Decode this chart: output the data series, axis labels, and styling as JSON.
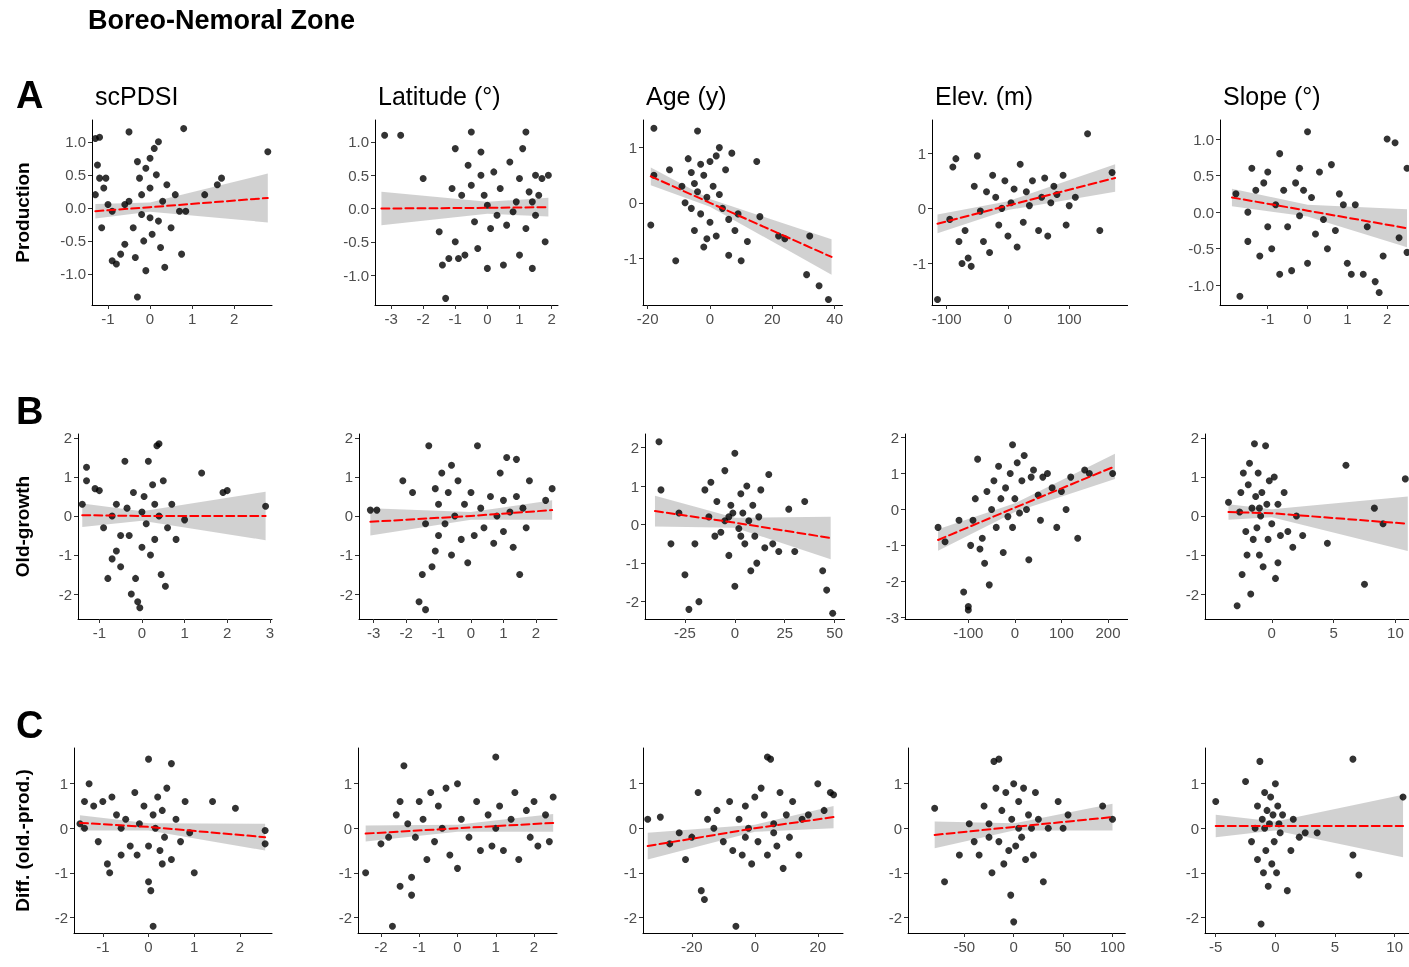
{
  "chart_data": [
    {
      "type": "scatter",
      "title": "scPDSI",
      "ylabel": "Production",
      "annotations": [
        "Boreo-Nemoral Zone",
        "A"
      ],
      "xlim": [
        -1.38,
        2.9
      ],
      "xticks": [
        -1,
        0,
        1,
        2
      ],
      "ylim": [
        -1.47,
        1.33
      ],
      "yticks": [
        {
          "value": -1,
          "label": "-1.0"
        },
        -0.5,
        {
          "value": 0,
          "label": "0.0"
        },
        0.5,
        {
          "value": 1,
          "label": "1.0"
        }
      ],
      "series": [
        {
          "type": "scatter",
          "color": "#000000",
          "marker": "circle",
          "x": [
            -1.3,
            -1.2,
            -1.25,
            -1.2,
            -1.3,
            -1.1,
            -1.05,
            -1.0,
            -1.15,
            -0.9,
            -0.8,
            -0.7,
            -0.6,
            -0.5,
            -0.5,
            -0.4,
            -0.35,
            -0.3,
            -0.3,
            -0.25,
            -0.2,
            -0.2,
            -0.15,
            -0.1,
            -0.1,
            0,
            0,
            0,
            0.05,
            0.1,
            0.15,
            0.2,
            0.2,
            0.25,
            0.3,
            0.35,
            0.4,
            0.5,
            0.6,
            0.7,
            0.75,
            0.8,
            0.85,
            1.3,
            1.6,
            1.7,
            2.8,
            -0.6,
            -0.9
          ],
          "values": [
            1.05,
            1.07,
            0.65,
            0.45,
            0.2,
            0.3,
            0.45,
            0.05,
            -0.3,
            -0.8,
            -0.85,
            -0.7,
            -0.55,
            1.15,
            0.1,
            -0.3,
            -0.75,
            -1.35,
            0.7,
            0.45,
            0.2,
            -0.1,
            -0.5,
            -0.95,
            0.6,
            0.75,
            0.3,
            -0.15,
            -0.4,
            0.9,
            0.5,
            1.0,
            -0.2,
            -0.6,
            0.1,
            -0.9,
            0.35,
            -0.3,
            0.2,
            -0.05,
            -0.7,
            1.2,
            -0.05,
            0.2,
            0.35,
            0.45,
            0.85,
            0.05,
            -0.05
          ]
        },
        {
          "type": "line",
          "color": "#ff0000",
          "marker": "none",
          "line_style": "dashed",
          "x": [
            -1.3,
            0,
            2.8
          ],
          "values": [
            -0.05,
            0.01,
            0.15
          ],
          "lower": [
            -0.16,
            -0.06,
            -0.22
          ],
          "upper": [
            0.06,
            0.08,
            0.52
          ]
        }
      ]
    },
    {
      "type": "scatter",
      "title": "Latitude (°)",
      "xlim": [
        -3.5,
        2.2
      ],
      "xticks": [
        -3,
        -2,
        -1,
        0,
        1,
        2
      ],
      "ylim": [
        -1.45,
        1.33
      ],
      "yticks": [
        {
          "value": -1,
          "label": "-1.0"
        },
        -0.5,
        {
          "value": 0,
          "label": "0.0"
        },
        0.5,
        {
          "value": 1,
          "label": "1.0"
        }
      ],
      "series": [
        {
          "type": "scatter",
          "color": "#000000",
          "marker": "circle",
          "x": [
            -3.2,
            -2.7,
            -2.0,
            -1.5,
            -1.3,
            -1.2,
            -1.1,
            -1.0,
            -1.0,
            -0.9,
            -0.8,
            -0.7,
            -0.6,
            -0.5,
            -0.5,
            -0.4,
            -0.3,
            -0.2,
            -0.1,
            0,
            0,
            0.1,
            0.2,
            0.3,
            0.4,
            0.5,
            0.6,
            0.7,
            0.8,
            0.9,
            1.0,
            1.0,
            1.1,
            1.2,
            1.2,
            1.3,
            1.4,
            1.5,
            1.5,
            1.6,
            1.7,
            1.8,
            1.9,
            1.4,
            -1.4,
            -0.2
          ],
          "values": [
            1.1,
            1.1,
            0.45,
            -0.35,
            -1.35,
            -0.75,
            0.3,
            -0.5,
            0.9,
            -0.75,
            0.2,
            -0.7,
            0.65,
            1.15,
            0.35,
            -0.2,
            -0.6,
            0.85,
            0.2,
            -0.9,
            0.05,
            -0.3,
            0.55,
            -0.1,
            0.3,
            -0.85,
            -0.25,
            0.7,
            -0.05,
            0.1,
            -0.7,
            0.45,
            0.9,
            -0.3,
            1.15,
            0.25,
            -0.9,
            0.5,
            -0.1,
            0.2,
            0.45,
            -0.5,
            0.5,
            0.1,
            -0.85,
            0.5
          ]
        },
        {
          "type": "line",
          "color": "#ff0000",
          "marker": "none",
          "line_style": "dashed",
          "x": [
            -3.3,
            0,
            1.9
          ],
          "values": [
            0.0,
            0.01,
            0.02
          ],
          "lower": [
            -0.25,
            -0.08,
            -0.12
          ],
          "upper": [
            0.25,
            0.1,
            0.16
          ]
        }
      ]
    },
    {
      "type": "scatter",
      "title": "Age (y)",
      "xlim": [
        -21.5,
        42.5
      ],
      "xticks": [
        -20,
        0,
        20,
        40
      ],
      "ylim": [
        -1.85,
        1.5
      ],
      "yticks": [
        -1,
        0,
        1
      ],
      "series": [
        {
          "type": "scatter",
          "color": "#000000",
          "marker": "circle",
          "x": [
            -18,
            -18,
            -19,
            -13,
            -11,
            -9,
            -8,
            -7,
            -6,
            -6,
            -5,
            -5,
            -4,
            -4,
            -3,
            -3,
            -2,
            -2,
            -1,
            0,
            0,
            1,
            2,
            2,
            3,
            4,
            5,
            6,
            6,
            7,
            8,
            9,
            10,
            12,
            15,
            16,
            22,
            24,
            32,
            31,
            35,
            38,
            -1,
            3
          ],
          "values": [
            1.35,
            0.5,
            -0.4,
            0.6,
            -1.05,
            0.3,
            0.0,
            0.8,
            0.55,
            -0.1,
            0.35,
            -0.5,
            1.3,
            0.2,
            0.7,
            -0.2,
            0.5,
            -0.8,
            0.1,
            0.75,
            -0.35,
            0.3,
            -0.6,
            0.85,
            1.0,
            -0.1,
            0.6,
            -0.95,
            -0.3,
            0.9,
            -0.5,
            -0.2,
            -1.05,
            -0.7,
            0.75,
            -0.25,
            -0.6,
            -0.65,
            -0.6,
            -1.3,
            -1.5,
            -1.75,
            -0.65,
            0.15
          ]
        },
        {
          "type": "line",
          "color": "#ff0000",
          "marker": "none",
          "line_style": "dashed",
          "x": [
            -19,
            0,
            39
          ],
          "values": [
            0.48,
            0.0,
            -0.98
          ],
          "lower": [
            0.32,
            -0.07,
            -1.3
          ],
          "upper": [
            0.64,
            0.07,
            -0.66
          ]
        }
      ]
    },
    {
      "type": "scatter",
      "title": "Elev. (m)",
      "xlim": [
        -124,
        196
      ],
      "xticks": [
        -100,
        0,
        100
      ],
      "ylim": [
        -1.75,
        1.6
      ],
      "yticks": [
        -1,
        0,
        1
      ],
      "series": [
        {
          "type": "scatter",
          "color": "#000000",
          "marker": "circle",
          "x": [
            -115,
            -95,
            -90,
            -85,
            -80,
            -70,
            -65,
            -60,
            -55,
            -50,
            -45,
            -40,
            -35,
            -30,
            -25,
            -20,
            -15,
            -10,
            -5,
            0,
            5,
            10,
            15,
            20,
            25,
            30,
            35,
            40,
            50,
            55,
            60,
            65,
            70,
            80,
            90,
            95,
            100,
            110,
            130,
            150,
            170,
            -75,
            75
          ],
          "values": [
            -1.65,
            -0.2,
            0.75,
            0.9,
            -0.6,
            -0.4,
            -0.9,
            -1.05,
            0.4,
            0.95,
            -0.05,
            -0.6,
            0.3,
            -0.8,
            0.6,
            0.2,
            -0.3,
            0.0,
            0.5,
            -0.5,
            0.1,
            0.35,
            -0.7,
            0.8,
            -0.25,
            0.3,
            0.05,
            0.5,
            -0.4,
            0.2,
            0.55,
            -0.5,
            0.1,
            0.25,
            0.6,
            -0.3,
            0.05,
            0.2,
            1.35,
            -0.4,
            0.65,
            -1.0,
            0.4
          ]
        },
        {
          "type": "line",
          "color": "#ff0000",
          "marker": "none",
          "line_style": "dashed",
          "x": [
            -115,
            0,
            175
          ],
          "values": [
            -0.28,
            0.05,
            0.55
          ],
          "lower": [
            -0.45,
            -0.03,
            0.3
          ],
          "upper": [
            -0.11,
            0.13,
            0.8
          ]
        }
      ]
    },
    {
      "type": "scatter",
      "title": "Slope (°)",
      "xlim": [
        -2.2,
        2.55
      ],
      "xticks": [
        -1,
        0,
        1,
        2
      ],
      "ylim": [
        -1.27,
        1.26
      ],
      "yticks": [
        {
          "value": -1,
          "label": "-1.0"
        },
        -0.5,
        {
          "value": 0,
          "label": "0.0"
        },
        0.5,
        {
          "value": 1,
          "label": "1.0"
        }
      ],
      "series": [
        {
          "type": "scatter",
          "color": "#000000",
          "marker": "circle",
          "x": [
            -1.8,
            -1.7,
            -1.5,
            -1.5,
            -1.4,
            -1.3,
            -1.2,
            -1.1,
            -1.0,
            -1.0,
            -0.9,
            -0.8,
            -0.7,
            -0.7,
            -0.6,
            -0.5,
            -0.4,
            -0.3,
            -0.2,
            -0.2,
            -0.1,
            0,
            0,
            0.1,
            0.2,
            0.3,
            0.4,
            0.5,
            0.6,
            0.7,
            0.9,
            1.0,
            1.1,
            1.2,
            1.4,
            1.5,
            1.7,
            1.8,
            1.9,
            2.0,
            2.2,
            2.3,
            2.5,
            2.5,
            0.8
          ],
          "values": [
            0.25,
            -1.15,
            0.0,
            -0.4,
            0.6,
            0.3,
            -0.6,
            0.4,
            -0.2,
            0.55,
            -0.5,
            0.1,
            0.8,
            -0.85,
            0.3,
            -0.2,
            -0.8,
            0.4,
            -0.05,
            0.6,
            0.3,
            -0.7,
            1.1,
            0.2,
            -0.3,
            0.55,
            -0.1,
            -0.5,
            0.65,
            -0.25,
            0.1,
            -0.7,
            -0.85,
            0.1,
            -0.85,
            -0.2,
            -0.95,
            -1.1,
            -0.6,
            1.0,
            0.95,
            -0.35,
            0.6,
            -0.55,
            0.25
          ]
        },
        {
          "type": "line",
          "color": "#ff0000",
          "marker": "none",
          "line_style": "dashed",
          "x": [
            -1.9,
            0,
            2.5
          ],
          "values": [
            0.2,
            0.02,
            -0.22
          ],
          "lower": [
            0.08,
            -0.06,
            -0.48
          ],
          "upper": [
            0.32,
            0.1,
            0.04
          ]
        }
      ]
    },
    {
      "type": "scatter",
      "ylabel": "Old-growth",
      "annotations": [
        "B"
      ],
      "xlim": [
        -1.5,
        3.05
      ],
      "xticks": [
        -1,
        0,
        1,
        2,
        3
      ],
      "ylim": [
        -2.64,
        2.1
      ],
      "yticks": [
        -2,
        -1,
        0,
        1,
        2
      ],
      "series": [
        {
          "type": "scatter",
          "color": "#000000",
          "marker": "circle",
          "x": [
            -1.4,
            -1.3,
            -1.3,
            -1.1,
            -1.0,
            -0.9,
            -0.8,
            -0.7,
            -0.6,
            -0.6,
            -0.5,
            -0.5,
            -0.4,
            -0.35,
            -0.3,
            -0.25,
            -0.2,
            -0.15,
            -0.1,
            -0.05,
            0,
            0,
            0.05,
            0.1,
            0.15,
            0.2,
            0.25,
            0.3,
            0.35,
            0.4,
            0.4,
            0.45,
            0.5,
            0.55,
            0.6,
            0.7,
            0.8,
            1.0,
            1.4,
            1.9,
            2.0,
            2.9,
            -0.7,
            0.3
          ],
          "values": [
            0.3,
            1.25,
            0.9,
            0.7,
            0.65,
            -0.3,
            -1.6,
            -1.1,
            -0.9,
            0.3,
            -0.5,
            -1.3,
            1.4,
            0.2,
            -0.5,
            -2.0,
            0.6,
            -1.6,
            -2.2,
            -2.35,
            0.1,
            -0.8,
            0.5,
            -0.2,
            1.4,
            -1.0,
            0.8,
            -0.6,
            1.8,
            1.85,
            0.0,
            -1.5,
            0.9,
            -1.8,
            -0.3,
            0.3,
            -0.6,
            -0.1,
            1.1,
            0.6,
            0.65,
            0.25,
            0.0,
            0.3
          ]
        },
        {
          "type": "line",
          "color": "#ff0000",
          "marker": "none",
          "line_style": "dashed",
          "x": [
            -1.4,
            0,
            2.9
          ],
          "values": [
            0.02,
            0.0,
            0.0
          ],
          "lower": [
            -0.28,
            -0.12,
            -0.62
          ],
          "upper": [
            0.32,
            0.12,
            0.62
          ]
        }
      ]
    },
    {
      "type": "scatter",
      "xlim": [
        -3.45,
        2.65
      ],
      "xticks": [
        -3,
        -2,
        -1,
        0,
        1,
        2
      ],
      "ylim": [
        -2.64,
        2.1
      ],
      "yticks": [
        -2,
        -1,
        0,
        1,
        2
      ],
      "series": [
        {
          "type": "scatter",
          "color": "#000000",
          "marker": "circle",
          "x": [
            -3.1,
            -2.9,
            -2.1,
            -1.8,
            -1.6,
            -1.5,
            -1.4,
            -1.4,
            -1.3,
            -1.2,
            -1.1,
            -1.1,
            -1.0,
            -1.0,
            -0.9,
            -0.8,
            -0.7,
            -0.6,
            -0.6,
            -0.5,
            -0.4,
            -0.3,
            -0.2,
            -0.1,
            0,
            0.1,
            0.2,
            0.3,
            0.4,
            0.6,
            0.7,
            0.8,
            0.9,
            1.0,
            1.0,
            1.1,
            1.2,
            1.3,
            1.4,
            1.4,
            1.5,
            1.6,
            1.7,
            1.8,
            2.3,
            2.5
          ],
          "values": [
            0.15,
            0.15,
            0.9,
            0.6,
            -2.2,
            -1.5,
            -0.2,
            -2.4,
            1.8,
            -1.3,
            0.7,
            -0.9,
            0.3,
            -0.5,
            1.1,
            -0.2,
            0.6,
            1.3,
            -1.0,
            0.0,
            0.9,
            -0.6,
            0.3,
            -1.2,
            0.6,
            -0.5,
            1.8,
            0.2,
            -0.3,
            0.5,
            -0.7,
            0.0,
            1.1,
            -0.4,
            0.4,
            1.5,
            0.1,
            -0.8,
            1.45,
            0.5,
            -1.5,
            0.2,
            -0.3,
            0.9,
            0.4,
            0.7
          ]
        },
        {
          "type": "line",
          "color": "#ff0000",
          "marker": "none",
          "line_style": "dashed",
          "x": [
            -3.1,
            0,
            2.5
          ],
          "values": [
            -0.15,
            0.0,
            0.15
          ],
          "lower": [
            -0.5,
            -0.1,
            -0.1
          ],
          "upper": [
            0.2,
            0.1,
            0.4
          ]
        }
      ]
    },
    {
      "type": "scatter",
      "xlim": [
        -45,
        55
      ],
      "xticks": [
        -25,
        0,
        25,
        50
      ],
      "ylim": [
        -2.45,
        2.35
      ],
      "yticks": [
        -2,
        -1,
        0,
        1,
        2
      ],
      "series": [
        {
          "type": "scatter",
          "color": "#000000",
          "marker": "circle",
          "x": [
            -38,
            -37,
            -32,
            -28,
            -25,
            -23,
            -20,
            -18,
            -15,
            -13,
            -12,
            -10,
            -9,
            -7,
            -5,
            -5,
            -3,
            -2,
            -1,
            0,
            0,
            2,
            3,
            4,
            5,
            6,
            7,
            8,
            9,
            10,
            11,
            12,
            13,
            15,
            17,
            19,
            22,
            27,
            30,
            35,
            44,
            46,
            49,
            -3,
            3
          ],
          "values": [
            2.15,
            0.9,
            -0.5,
            0.3,
            -1.3,
            -2.2,
            -0.5,
            -2.0,
            0.9,
            0.2,
            1.1,
            -0.3,
            0.6,
            -0.2,
            1.4,
            0.1,
            -0.8,
            0.5,
            0.3,
            -1.6,
            1.85,
            -0.1,
            0.8,
            0.3,
            -0.5,
            1.0,
            0.1,
            -1.2,
            0.5,
            -0.3,
            -1.0,
            0.2,
            0.9,
            -0.6,
            1.3,
            -0.5,
            -0.7,
            0.4,
            -0.7,
            0.6,
            -1.2,
            -1.7,
            -2.3,
            0.2,
            -0.3
          ]
        },
        {
          "type": "line",
          "color": "#ff0000",
          "marker": "none",
          "line_style": "dashed",
          "x": [
            -40,
            0,
            48
          ],
          "values": [
            0.35,
            0.05,
            -0.35
          ],
          "lower": [
            -0.05,
            -0.08,
            -0.9
          ],
          "upper": [
            0.75,
            0.18,
            0.2
          ]
        }
      ]
    },
    {
      "type": "scatter",
      "xlim": [
        -236,
        243
      ],
      "xticks": [
        -100,
        0,
        100,
        200
      ],
      "ylim": [
        -3.05,
        2.1
      ],
      "yticks": [
        -3,
        -2,
        -1,
        0,
        1,
        2
      ],
      "series": [
        {
          "type": "scatter",
          "color": "#000000",
          "marker": "circle",
          "x": [
            -165,
            -150,
            -120,
            -110,
            -100,
            -100,
            -95,
            -90,
            -85,
            -80,
            -75,
            -70,
            -65,
            -60,
            -55,
            -50,
            -45,
            -40,
            -35,
            -30,
            -25,
            -20,
            -15,
            -10,
            -5,
            0,
            5,
            10,
            15,
            20,
            25,
            30,
            35,
            40,
            50,
            55,
            60,
            70,
            80,
            90,
            100,
            110,
            120,
            135,
            150,
            160,
            210,
            -5
          ],
          "values": [
            -0.5,
            -0.9,
            -0.3,
            -2.3,
            -2.7,
            -2.8,
            -1.0,
            -0.3,
            0.3,
            1.4,
            -1.1,
            -0.8,
            -1.5,
            0.5,
            -2.1,
            0.0,
            0.8,
            -0.5,
            1.2,
            0.3,
            -1.2,
            0.6,
            -0.2,
            1.0,
            1.8,
            0.3,
            1.3,
            -0.1,
            0.8,
            1.5,
            0.0,
            -1.4,
            0.9,
            1.1,
            0.4,
            -0.3,
            0.9,
            1.0,
            0.6,
            -0.5,
            0.5,
            0.0,
            0.9,
            -0.8,
            1.1,
            1.0,
            1.0,
            -0.5
          ]
        },
        {
          "type": "line",
          "color": "#ff0000",
          "marker": "none",
          "line_style": "dashed",
          "x": [
            -165,
            0,
            215
          ],
          "values": [
            -0.85,
            0.05,
            1.2
          ],
          "lower": [
            -1.15,
            -0.07,
            0.85
          ],
          "upper": [
            -0.55,
            0.17,
            1.55
          ]
        }
      ]
    },
    {
      "type": "scatter",
      "xlim": [
        -5.4,
        11.1
      ],
      "xticks": [
        0,
        5,
        10
      ],
      "ylim": [
        -2.64,
        2.1
      ],
      "yticks": [
        -2,
        -1,
        0,
        1,
        2
      ],
      "series": [
        {
          "type": "scatter",
          "color": "#000000",
          "marker": "circle",
          "x": [
            -3.5,
            -2.8,
            -2.5,
            -2.4,
            -2.3,
            -2.1,
            -2.0,
            -1.9,
            -1.8,
            -1.7,
            -1.6,
            -1.5,
            -1.4,
            -1.3,
            -1.2,
            -1.1,
            -1.0,
            -0.9,
            -0.8,
            -0.7,
            -0.5,
            -0.4,
            -0.3,
            -0.2,
            0,
            0.2,
            0.3,
            0.5,
            0.7,
            1.0,
            1.3,
            1.7,
            2.0,
            2.5,
            4.5,
            6.0,
            7.5,
            8.3,
            9.0,
            10.8,
            -1.0,
            0.5,
            -2.6
          ],
          "values": [
            0.35,
            -2.3,
            0.6,
            -1.5,
            1.1,
            -0.4,
            -1.0,
            0.8,
            1.35,
            -2.0,
            0.2,
            -0.6,
            1.85,
            0.5,
            -0.3,
            1.1,
            -1.0,
            0.0,
            0.6,
            -1.3,
            1.8,
            0.3,
            -0.6,
            0.9,
            -0.2,
            1.0,
            -1.6,
            0.3,
            -0.5,
            0.6,
            -0.4,
            -0.8,
            0.0,
            -0.5,
            -0.7,
            1.3,
            -1.75,
            0.2,
            -0.2,
            0.95,
            0.2,
            -1.2,
            0.1
          ]
        },
        {
          "type": "line",
          "color": "#ff0000",
          "marker": "none",
          "line_style": "dashed",
          "x": [
            -3.5,
            0,
            11
          ],
          "values": [
            0.1,
            0.07,
            -0.2
          ],
          "lower": [
            -0.1,
            -0.03,
            -0.9
          ],
          "upper": [
            0.3,
            0.17,
            0.5
          ]
        }
      ]
    },
    {
      "type": "scatter",
      "ylabel": "Diff. (old.-prod.)",
      "annotations": [
        "C"
      ],
      "xlim": [
        -1.63,
        2.7
      ],
      "xticks": [
        -1,
        0,
        1,
        2
      ],
      "ylim": [
        -2.35,
        1.8
      ],
      "yticks": [
        -2,
        -1,
        0,
        1
      ],
      "series": [
        {
          "type": "scatter",
          "color": "#000000",
          "marker": "circle",
          "x": [
            -1.5,
            -1.4,
            -1.4,
            -1.3,
            -1.2,
            -1.1,
            -1.0,
            -0.9,
            -0.85,
            -0.8,
            -0.7,
            -0.6,
            -0.5,
            -0.4,
            -0.3,
            -0.25,
            -0.2,
            -0.1,
            0,
            0,
            0,
            0.05,
            0.1,
            0.1,
            0.15,
            0.2,
            0.25,
            0.3,
            0.35,
            0.4,
            0.5,
            0.5,
            0.6,
            0.7,
            0.8,
            0.9,
            1.0,
            1.4,
            1.9,
            2.55,
            2.55,
            -0.6,
            0.3
          ],
          "values": [
            0.1,
            0.0,
            0.6,
            1.0,
            0.5,
            -0.3,
            0.6,
            -0.8,
            -1.0,
            0.7,
            0.3,
            -0.6,
            0.2,
            -0.4,
            0.8,
            -0.6,
            0.1,
            0.5,
            1.55,
            -1.2,
            -0.4,
            -1.4,
            0.3,
            -2.2,
            0.0,
            0.7,
            -0.5,
            0.4,
            -0.2,
            0.9,
            1.45,
            -0.7,
            0.2,
            -0.3,
            0.6,
            -0.1,
            -1.0,
            0.6,
            0.45,
            -0.35,
            -0.05,
            0.0,
            -0.8
          ]
        },
        {
          "type": "line",
          "color": "#ff0000",
          "marker": "none",
          "line_style": "dashed",
          "x": [
            -1.5,
            0,
            2.55
          ],
          "values": [
            0.12,
            0.03,
            -0.2
          ],
          "lower": [
            -0.05,
            -0.05,
            -0.5
          ],
          "upper": [
            0.29,
            0.11,
            0.1
          ]
        }
      ]
    },
    {
      "type": "scatter",
      "xlim": [
        -2.6,
        2.6
      ],
      "xticks": [
        -2,
        -1,
        0,
        1,
        2
      ],
      "ylim": [
        -2.35,
        1.8
      ],
      "yticks": [
        -2,
        -1,
        0,
        1
      ],
      "series": [
        {
          "type": "scatter",
          "color": "#000000",
          "marker": "circle",
          "x": [
            -2.4,
            -2.0,
            -1.8,
            -1.7,
            -1.6,
            -1.5,
            -1.5,
            -1.4,
            -1.3,
            -1.2,
            -1.2,
            -1.1,
            -1.0,
            -0.9,
            -0.8,
            -0.7,
            -0.6,
            -0.5,
            -0.4,
            -0.3,
            -0.2,
            0,
            0,
            0.1,
            0.3,
            0.5,
            0.6,
            0.8,
            0.9,
            1.0,
            1.0,
            1.1,
            1.2,
            1.4,
            1.5,
            1.6,
            1.8,
            1.9,
            2.0,
            2.1,
            2.3,
            2.5,
            2.4
          ],
          "values": [
            -1.0,
            -0.35,
            -0.2,
            -2.2,
            0.3,
            0.6,
            -1.3,
            1.4,
            0.1,
            -1.1,
            -1.5,
            -0.2,
            0.6,
            0.2,
            -0.7,
            0.8,
            -0.3,
            0.5,
            0.0,
            0.9,
            -0.6,
            1.0,
            -0.9,
            0.2,
            -0.2,
            0.6,
            -0.5,
            0.3,
            -0.4,
            1.6,
            0.0,
            0.5,
            -0.5,
            0.2,
            0.8,
            -0.7,
            0.4,
            -0.2,
            0.6,
            -0.4,
            0.3,
            0.7,
            -0.3
          ]
        },
        {
          "type": "line",
          "color": "#ff0000",
          "marker": "none",
          "line_style": "dashed",
          "x": [
            -2.4,
            0,
            2.5
          ],
          "values": [
            -0.12,
            0.0,
            0.12
          ],
          "lower": [
            -0.3,
            -0.08,
            -0.08
          ],
          "upper": [
            0.06,
            0.08,
            0.32
          ]
        }
      ]
    },
    {
      "type": "scatter",
      "xlim": [
        -35.5,
        28
      ],
      "xticks": [
        -20,
        0,
        20
      ],
      "ylim": [
        -2.35,
        1.8
      ],
      "yticks": [
        -2,
        -1,
        0,
        1
      ],
      "series": [
        {
          "type": "scatter",
          "color": "#000000",
          "marker": "circle",
          "x": [
            -34,
            -30,
            -27,
            -24,
            -22,
            -20,
            -18,
            -17,
            -16,
            -15,
            -13,
            -12,
            -10,
            -8,
            -7,
            -6,
            -5,
            -4,
            -3,
            -2,
            -1,
            0,
            1,
            2,
            3,
            4,
            4,
            5,
            6,
            7,
            8,
            9,
            10,
            11,
            12,
            14,
            15,
            17,
            20,
            22,
            24,
            25,
            -3,
            6
          ],
          "values": [
            0.2,
            0.25,
            -0.35,
            -0.1,
            -0.7,
            -0.2,
            0.8,
            -1.4,
            -1.6,
            0.2,
            0.0,
            0.4,
            -0.3,
            0.6,
            -0.5,
            -2.2,
            0.2,
            -0.6,
            0.5,
            0.0,
            -0.8,
            0.7,
            -0.3,
            0.9,
            0.3,
            1.6,
            -0.6,
            1.55,
            0.1,
            -0.4,
            0.8,
            -0.9,
            0.3,
            -0.2,
            0.6,
            -0.6,
            0.2,
            0.3,
            1.0,
            0.4,
            0.8,
            0.75,
            -0.2,
            -0.1
          ]
        },
        {
          "type": "line",
          "color": "#ff0000",
          "marker": "none",
          "line_style": "dashed",
          "x": [
            -34,
            0,
            25
          ],
          "values": [
            -0.4,
            0.0,
            0.25
          ],
          "lower": [
            -0.7,
            -0.08,
            0.0
          ],
          "upper": [
            -0.1,
            0.08,
            0.5
          ]
        }
      ]
    },
    {
      "type": "scatter",
      "xlim": [
        -107,
        113
      ],
      "xticks": [
        -50,
        0,
        50,
        100
      ],
      "ylim": [
        -2.35,
        1.8
      ],
      "yticks": [
        -2,
        -1,
        0,
        1
      ],
      "series": [
        {
          "type": "scatter",
          "color": "#000000",
          "marker": "circle",
          "x": [
            -80,
            -70,
            -55,
            -45,
            -40,
            -35,
            -30,
            -25,
            -22,
            -20,
            -18,
            -15,
            -15,
            -12,
            -10,
            -8,
            -5,
            -3,
            -2,
            0,
            0,
            2,
            5,
            8,
            10,
            12,
            15,
            18,
            20,
            22,
            25,
            30,
            35,
            45,
            50,
            55,
            90,
            100,
            -25,
            5
          ],
          "values": [
            0.45,
            -1.2,
            -0.6,
            0.1,
            -0.3,
            -0.6,
            0.5,
            0.1,
            -1.0,
            1.5,
            0.9,
            1.55,
            -0.3,
            0.4,
            -0.8,
            0.8,
            -0.5,
            -1.5,
            0.2,
            -2.1,
            1.0,
            -0.4,
            0.6,
            -0.2,
            0.9,
            -0.7,
            0.3,
            0.0,
            -0.6,
            0.8,
            0.2,
            -1.2,
            0.0,
            0.6,
            0.0,
            0.3,
            0.5,
            0.2,
            -0.2,
            0.0
          ]
        },
        {
          "type": "line",
          "color": "#ff0000",
          "marker": "none",
          "line_style": "dashed",
          "x": [
            -80,
            0,
            100
          ],
          "values": [
            -0.15,
            0.03,
            0.25
          ],
          "lower": [
            -0.45,
            -0.05,
            -0.05
          ],
          "upper": [
            0.15,
            0.11,
            0.55
          ]
        }
      ]
    },
    {
      "type": "scatter",
      "xlim": [
        -5.9,
        11.2
      ],
      "xticks": [
        -5,
        0,
        5,
        10
      ],
      "ylim": [
        -2.35,
        1.8
      ],
      "yticks": [
        -2,
        -1,
        0,
        1
      ],
      "series": [
        {
          "type": "scatter",
          "color": "#000000",
          "marker": "circle",
          "x": [
            -5,
            -2.5,
            -2,
            -1.5,
            -1.5,
            -1.3,
            -1.2,
            -1.1,
            -1.0,
            -0.9,
            -0.8,
            -0.7,
            -0.6,
            -0.5,
            -0.4,
            -0.3,
            -0.2,
            -0.1,
            0,
            0.1,
            0.2,
            0.4,
            0.6,
            1.0,
            1.3,
            1.5,
            2.0,
            2.5,
            3.5,
            6.5,
            6.5,
            7.0,
            10.7,
            -0.9,
            0.3,
            -1.7
          ],
          "values": [
            0.6,
            1.05,
            -0.3,
            0.5,
            -0.7,
            1.5,
            -2.15,
            0.2,
            -1.0,
            0.8,
            -0.5,
            0.4,
            -1.3,
            0.1,
            0.7,
            -0.8,
            0.3,
            -0.3,
            1.0,
            -1.0,
            0.5,
            -0.1,
            0.3,
            -1.4,
            -0.5,
            0.2,
            -0.2,
            -0.1,
            -0.1,
            1.55,
            -0.6,
            -1.05,
            0.7,
            0.0,
            0.1,
            0.0
          ]
        },
        {
          "type": "line",
          "color": "#ff0000",
          "marker": "none",
          "line_style": "dashed",
          "x": [
            -5,
            0,
            10.7
          ],
          "values": [
            0.05,
            0.05,
            0.05
          ],
          "lower": [
            -0.2,
            -0.05,
            -0.65
          ],
          "upper": [
            0.3,
            0.15,
            0.75
          ]
        }
      ]
    }
  ]
}
